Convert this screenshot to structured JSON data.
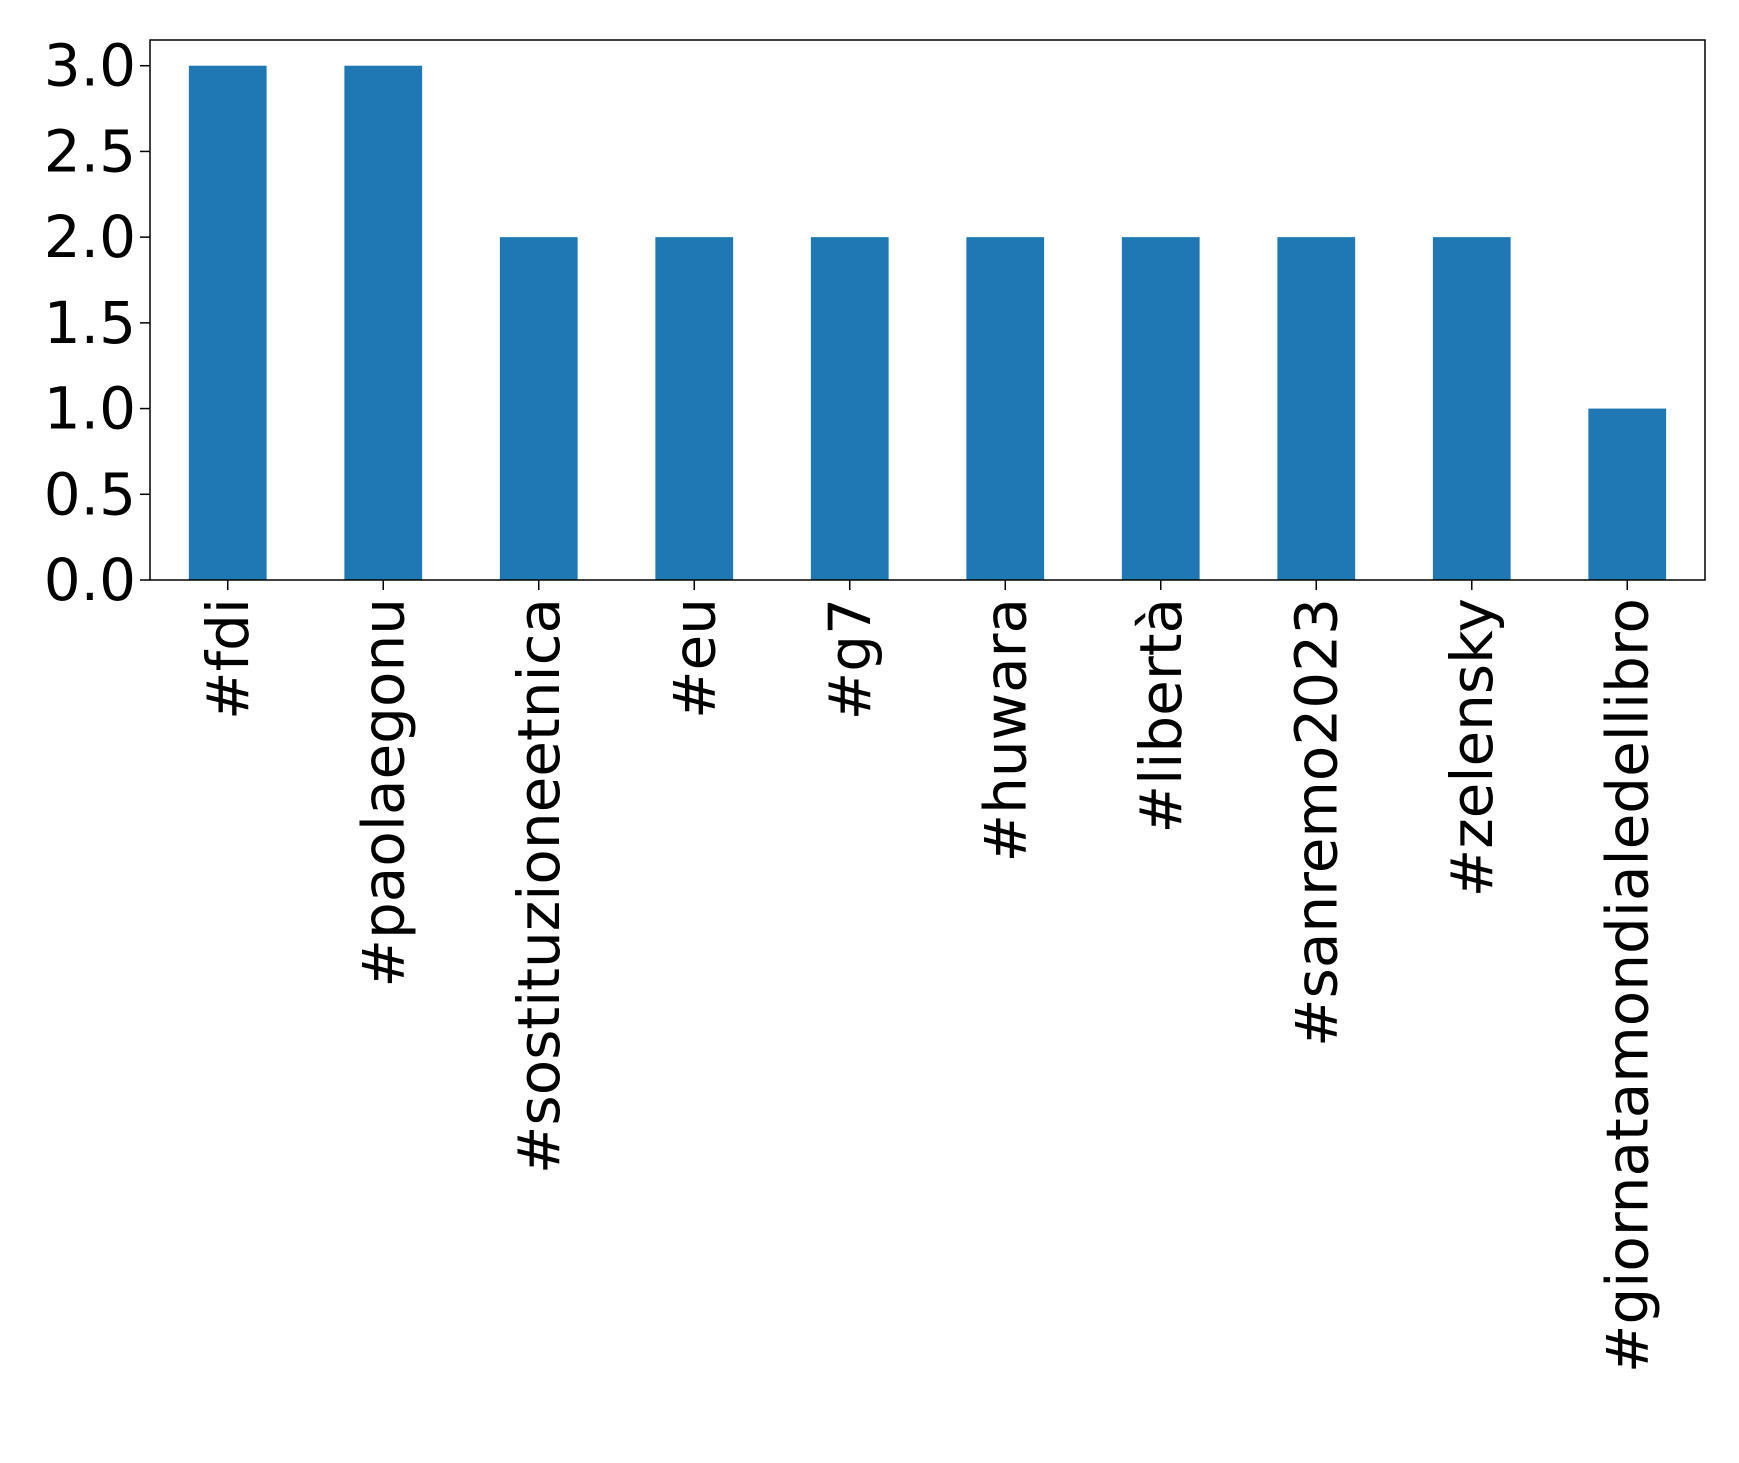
{
  "chart_data": {
    "type": "bar",
    "title": "",
    "xlabel": "",
    "ylabel": "",
    "categories": [
      "#fdi",
      "#paolaegonu",
      "#sostituzioneetnica",
      "#eu",
      "#g7",
      "#huwara",
      "#libertà",
      "#sanremo2023",
      "#zelensky",
      "#giornatamondialedellibro"
    ],
    "values": [
      3,
      3,
      2,
      2,
      2,
      2,
      2,
      2,
      2,
      1
    ],
    "ylim": [
      0,
      3.15
    ],
    "yticks": [
      0.0,
      0.5,
      1.0,
      1.5,
      2.0,
      2.5,
      3.0
    ],
    "ytick_labels": [
      "0.0",
      "0.5",
      "1.0",
      "1.5",
      "2.0",
      "2.5",
      "3.0"
    ],
    "bar_color": "#1f77b4",
    "grid": false,
    "legend": "none",
    "xtick_rotation": "vertical"
  }
}
